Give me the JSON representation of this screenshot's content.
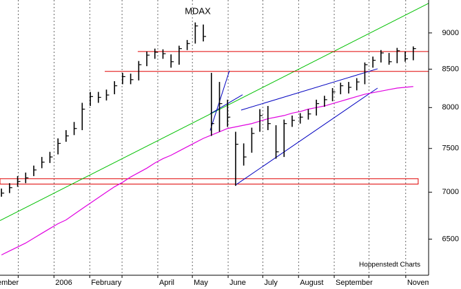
{
  "chart_data": {
    "type": "ohlc",
    "title": "MDAX",
    "source": "Hoppenstedt Charts",
    "color": "#000000",
    "x": [
      -6.5,
      -5.5,
      -4.5,
      -3.5,
      -2.5,
      -1.5,
      -0.5,
      0.5,
      1.5,
      2.5,
      3.5,
      4.5,
      5.5,
      6.5,
      7.5,
      8.5,
      9.5,
      10.5,
      11.5,
      12.5,
      13.5,
      14.5,
      15.5,
      16.5,
      17.5,
      18.5,
      19.5,
      20.5,
      21.5,
      22.5,
      23.5,
      24.5,
      25.5,
      26.5,
      27.5,
      28.5,
      29.5,
      30.5,
      31.5,
      32.5,
      33.5,
      34.5,
      35.5,
      36.5,
      37.5,
      38.5,
      39.5,
      40.5,
      41.5,
      42.5,
      43.5,
      44.5
    ],
    "high": [
      7040,
      7100,
      7180,
      7220,
      7300,
      7400,
      7460,
      7620,
      7720,
      7820,
      8060,
      8200,
      8200,
      8230,
      8340,
      8450,
      8440,
      8610,
      8740,
      8780,
      8770,
      8700,
      8820,
      8900,
      9150,
      9120,
      8450,
      8330,
      8100,
      7700,
      7560,
      7750,
      7980,
      8020,
      7780,
      7850,
      7900,
      7930,
      7980,
      8100,
      8150,
      8250,
      8320,
      8330,
      8380,
      8590,
      8670,
      8760,
      8720,
      8790,
      8740,
      8810
    ],
    "low": [
      6950,
      6990,
      7060,
      7100,
      7180,
      7270,
      7330,
      7430,
      7580,
      7660,
      7720,
      8020,
      8060,
      8090,
      8170,
      8300,
      8300,
      8350,
      8540,
      8640,
      8640,
      8520,
      8560,
      8760,
      8850,
      8880,
      7650,
      7700,
      7760,
      7070,
      7300,
      7450,
      7700,
      7720,
      7380,
      7400,
      7760,
      7800,
      7850,
      7900,
      8010,
      8080,
      8170,
      8180,
      8220,
      8300,
      8520,
      8590,
      8560,
      8580,
      8600,
      8620
    ],
    "close": [
      6990,
      7050,
      7120,
      7160,
      7250,
      7340,
      7400,
      7560,
      7650,
      7740,
      7980,
      8140,
      8130,
      8160,
      8280,
      8400,
      8360,
      8560,
      8690,
      8730,
      8710,
      8600,
      8780,
      8850,
      9100,
      8950,
      7800,
      8050,
      7880,
      7550,
      7400,
      7680,
      7900,
      7800,
      7460,
      7800,
      7840,
      7880,
      7920,
      8050,
      8100,
      8200,
      8280,
      8260,
      8330,
      8560,
      8620,
      8720,
      8600,
      8750,
      8640,
      8780
    ],
    "overlays": [
      {
        "color": "#e000e0",
        "values": [
          6340,
          6380,
          6420,
          6460,
          6510,
          6560,
          6610,
          6660,
          6700,
          6760,
          6820,
          6880,
          6940,
          7000,
          7060,
          7110,
          7170,
          7220,
          7270,
          7330,
          7380,
          7420,
          7470,
          7520,
          7570,
          7620,
          7660,
          7700,
          7740,
          7760,
          7780,
          7800,
          7830,
          7860,
          7880,
          7900,
          7930,
          7950,
          7980,
          8000,
          8020,
          8050,
          8080,
          8110,
          8140,
          8170,
          8190,
          8210,
          8230,
          8250,
          8260,
          8270
        ]
      }
    ],
    "trendlines": [
      {
        "color": "#00c000",
        "x": [
          -6.68,
          46.4
        ],
        "y": [
          6693,
          9430
        ]
      },
      {
        "color": "#e00000",
        "x": [
          10.38,
          46.4
        ],
        "y": [
          8740,
          8740
        ]
      },
      {
        "color": "#e00000",
        "x": [
          6.29,
          46.4
        ],
        "y": [
          8470,
          8470
        ]
      },
      {
        "color": "#0000c0",
        "x": [
          19.34,
          21.73
        ],
        "y": [
          7714,
          8478
        ]
      },
      {
        "color": "#0000c0",
        "x": [
          19.34,
          23.36
        ],
        "y": [
          7921,
          8163
        ]
      },
      {
        "color": "#0000c0",
        "x": [
          23.18,
          40.08
        ],
        "y": [
          7968,
          8505
        ]
      },
      {
        "color": "#0000c0",
        "x": [
          22.58,
          40.08
        ],
        "y": [
          7085,
          8250
        ]
      }
    ],
    "band": {
      "color": "#e00000",
      "x": [
        -6.68,
        45.11
      ],
      "y": [
        7090,
        7150
      ]
    },
    "xlim": [
      -8.9,
      46.4
    ],
    "ylim": [
      6140,
      9480
    ],
    "log_scale": true,
    "grid": "x",
    "xticks": [
      {
        "value": -8.86,
        "label": "November"
      },
      {
        "value": -4.43,
        "label": null
      },
      {
        "value": 0,
        "label": "2006"
      },
      {
        "value": 4.43,
        "label": "February"
      },
      {
        "value": 8.43,
        "label": null
      },
      {
        "value": 12.86,
        "label": "April"
      },
      {
        "value": 17.14,
        "label": "May"
      },
      {
        "value": 21.57,
        "label": "June"
      },
      {
        "value": 25.86,
        "label": "July"
      },
      {
        "value": 30.29,
        "label": "August"
      },
      {
        "value": 34.71,
        "label": "September"
      },
      {
        "value": 39,
        "label": null
      },
      {
        "value": 43.57,
        "label": "November"
      }
    ],
    "yticks": [
      6500,
      7000,
      7500,
      8000,
      8500,
      9000
    ]
  }
}
